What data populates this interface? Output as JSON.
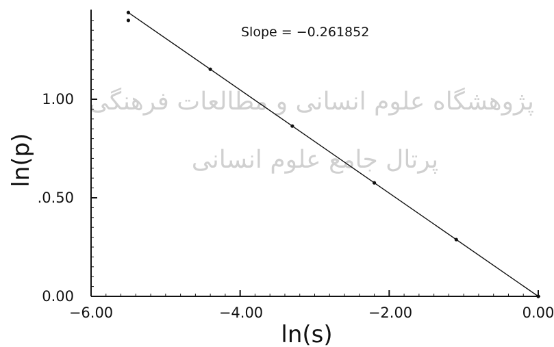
{
  "chart_data": {
    "type": "scatter",
    "xlabel": "ln(s)",
    "ylabel": "ln(p)",
    "xlim": [
      -6.0,
      0.0
    ],
    "ylim": [
      0.0,
      1.45
    ],
    "xticks": [
      -6.0,
      -4.0,
      -2.0,
      0.0
    ],
    "xtick_labels": [
      "−6.00",
      "−4.00",
      "−2.00",
      "0.00"
    ],
    "yticks": [
      0.0,
      0.5,
      1.0
    ],
    "ytick_labels": [
      "0.00",
      ".0.50",
      "1.00"
    ],
    "annotation": "Slope  =  −0.261852",
    "grid": false,
    "points": [
      {
        "x": -5.5,
        "y": 1.44
      },
      {
        "x": -5.5,
        "y": 1.4
      },
      {
        "x": -4.4,
        "y": 1.152
      },
      {
        "x": -3.3,
        "y": 0.864
      },
      {
        "x": -2.2,
        "y": 0.576
      },
      {
        "x": -1.1,
        "y": 0.288
      },
      {
        "x": 0.0,
        "y": 0.0
      }
    ],
    "fit_line": {
      "x0": -5.5,
      "y0": 1.44,
      "x1": 0.0,
      "y1": 0.0
    }
  },
  "watermark": {
    "line1": "پژوهشگاه علوم انسانی و مطالعات فرهنگی",
    "line2": "پرتال جامع علوم انسانی"
  }
}
